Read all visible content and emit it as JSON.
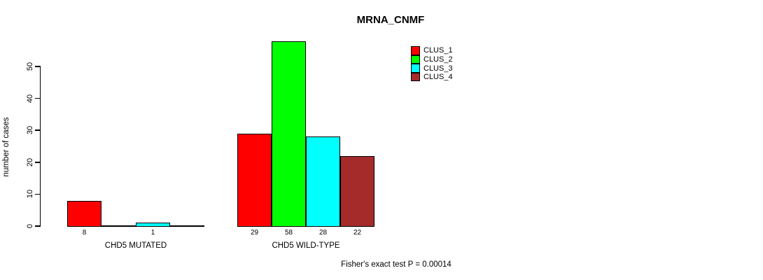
{
  "chart_data": {
    "type": "bar",
    "title": "MRNA_CNMF",
    "ylabel": "number of cases",
    "xlabel": "",
    "ylim": [
      0,
      50
    ],
    "yticks": [
      0,
      10,
      20,
      30,
      40,
      50
    ],
    "grid": false,
    "legend_position": "top-right",
    "categories": [
      "CHD5 MUTATED",
      "CHD5 WILD-TYPE"
    ],
    "series": [
      {
        "name": "CLUS_1",
        "color": "#FF0000",
        "values": [
          8,
          29
        ]
      },
      {
        "name": "CLUS_2",
        "color": "#00FF00",
        "values": [
          0,
          58
        ]
      },
      {
        "name": "CLUS_3",
        "color": "#00FFFF",
        "values": [
          1,
          28
        ]
      },
      {
        "name": "CLUS_4",
        "color": "#A52A2A",
        "values": [
          0,
          22
        ]
      }
    ],
    "visible_bar_value_labels": [
      "8",
      "1",
      "29",
      "58",
      "28",
      "22"
    ],
    "annotation": "Fisher's exact test P = 0.00014"
  },
  "colors": {
    "background": "#FFFFFF",
    "axis": "#000000",
    "text": "#000000"
  }
}
